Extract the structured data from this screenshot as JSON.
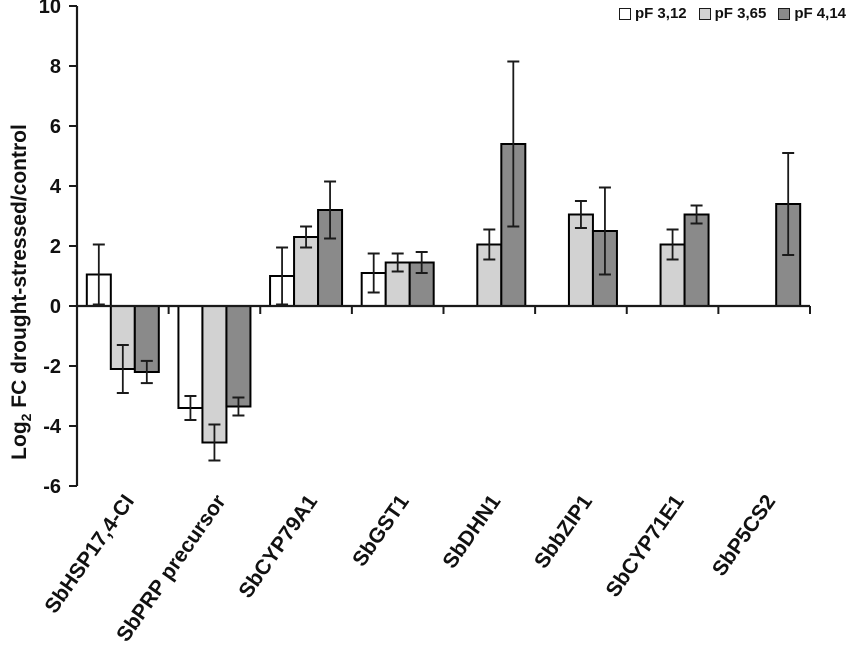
{
  "legend": {
    "items": [
      {
        "label": "pF 3,12",
        "color": "#ffffff"
      },
      {
        "label": "pF 3,65",
        "color": "#d2d2d2"
      },
      {
        "label": "pF 4,14",
        "color": "#8a8a8a"
      }
    ]
  },
  "chart_data": {
    "type": "bar",
    "title": "",
    "categories": [
      "SbHSP17,4-CI",
      "SbPRP precursor",
      "SbCYP79A1",
      "SbGST1",
      "SbDHN1",
      "SbbZIP1",
      "SbCYP71E1",
      "SbP5CS2"
    ],
    "series": [
      {
        "name": "pF 3,12",
        "color": "#ffffff",
        "values": [
          1.05,
          -3.4,
          1.0,
          1.1,
          null,
          null,
          null,
          null
        ],
        "errors": [
          1.0,
          0.4,
          0.95,
          0.65,
          null,
          null,
          null,
          null
        ]
      },
      {
        "name": "pF 3,65",
        "color": "#d2d2d2",
        "values": [
          -2.1,
          -4.55,
          2.3,
          1.45,
          2.05,
          3.05,
          2.05,
          null
        ],
        "errors": [
          0.8,
          0.6,
          0.35,
          0.3,
          0.5,
          0.45,
          0.5,
          null
        ]
      },
      {
        "name": "pF 4,14",
        "color": "#8a8a8a",
        "values": [
          -2.2,
          -3.35,
          3.2,
          1.45,
          5.4,
          2.5,
          3.05,
          3.4
        ],
        "errors": [
          0.37,
          0.3,
          0.95,
          0.35,
          2.75,
          1.45,
          0.3,
          1.7
        ]
      }
    ],
    "ylabel_parts": {
      "prefix": "Log",
      "sub": "2",
      "suffix": " FC drought-stressed/control"
    },
    "ylabel_text": "Log2 FC drought-stressed/control",
    "xlabel": "",
    "ylim": [
      -6,
      10
    ],
    "ytick_step": 2,
    "ytick_labels": [
      "-6",
      "-4",
      "-2",
      "0",
      "2",
      "4",
      "6",
      "8",
      "10"
    ],
    "grid": false,
    "legend_position": "top-right",
    "bar_outline_color": "#000000",
    "error_bar_color": "#1a1a1a",
    "axis_color": "#1a1a1a"
  }
}
